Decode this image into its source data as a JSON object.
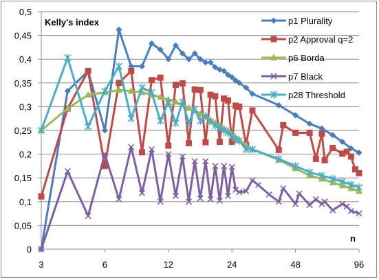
{
  "chart_data": {
    "type": "line",
    "title": "Kelly's index",
    "xlabel": "n",
    "ylabel": "",
    "x_scale": "log",
    "x_tick_labels": [
      "3",
      "6",
      "12",
      "24",
      "48",
      "96"
    ],
    "y_tick_labels": [
      "0",
      "0,05",
      "0,1",
      "0,15",
      "0,2",
      "0,25",
      "0,3",
      "0,35",
      "0,4",
      "0,45",
      "0,5"
    ],
    "xlim": [
      3,
      96
    ],
    "ylim": [
      0,
      0.5
    ],
    "grid": "horizontal",
    "legend_position": "top-right",
    "series": [
      {
        "name": "p1 Plurality",
        "color": "#4a7ebb",
        "marker": "diamond",
        "x": [
          3,
          4,
          5,
          6,
          7,
          8,
          9,
          10,
          11,
          12,
          13,
          14,
          15,
          16,
          17,
          18,
          19,
          20,
          21,
          22,
          23,
          24,
          25,
          26,
          28,
          30,
          40,
          48,
          56,
          64,
          72,
          80,
          88,
          96
        ],
        "y": [
          0,
          0.333,
          0.375,
          0.25,
          0.462,
          0.385,
          0.385,
          0.433,
          0.42,
          0.4,
          0.429,
          0.412,
          0.4,
          0.412,
          0.4,
          0.393,
          0.393,
          0.383,
          0.378,
          0.375,
          0.367,
          0.362,
          0.355,
          0.35,
          0.34,
          0.327,
          0.303,
          0.282,
          0.264,
          0.254,
          0.24,
          0.226,
          0.212,
          0.203
        ]
      },
      {
        "name": "p2 Approval q=2",
        "color": "#be4b48",
        "marker": "square",
        "x": [
          3,
          4,
          5,
          6,
          7,
          8,
          9,
          10,
          11,
          12,
          13,
          14,
          15,
          16,
          17,
          18,
          19,
          20,
          21,
          22,
          23,
          24,
          25,
          26,
          28,
          30,
          40,
          42,
          48,
          56,
          60,
          64,
          66,
          72,
          80,
          84,
          88,
          92,
          96
        ],
        "y": [
          0.111,
          0.296,
          0.375,
          0.175,
          0.35,
          0.375,
          0.204,
          0.356,
          0.361,
          0.218,
          0.346,
          0.349,
          0.223,
          0.336,
          0.335,
          0.225,
          0.325,
          0.322,
          0.226,
          0.317,
          0.313,
          0.226,
          0.302,
          0.3,
          0.22,
          0.292,
          0.209,
          0.261,
          0.245,
          0.245,
          0.19,
          0.243,
          0.187,
          0.213,
          0.201,
          0.205,
          0.195,
          0.168,
          0.16
        ]
      },
      {
        "name": "p6 Borda",
        "color": "#98b954",
        "marker": "triangle",
        "x": [
          3,
          4,
          5,
          6,
          7,
          8,
          9,
          10,
          11,
          12,
          13,
          14,
          15,
          16,
          17,
          18,
          19,
          20,
          21,
          22,
          23,
          24,
          25,
          26,
          28,
          30,
          40,
          48,
          56,
          64,
          72,
          80,
          88,
          96
        ],
        "y": [
          0.25,
          0.296,
          0.325,
          0.33,
          0.335,
          0.333,
          0.33,
          0.325,
          0.32,
          0.315,
          0.31,
          0.305,
          0.297,
          0.292,
          0.285,
          0.28,
          0.272,
          0.266,
          0.26,
          0.254,
          0.249,
          0.243,
          0.235,
          0.23,
          0.22,
          0.21,
          0.188,
          0.17,
          0.155,
          0.148,
          0.14,
          0.134,
          0.128,
          0.122
        ]
      },
      {
        "name": "p7 Black",
        "color": "#7d60a0",
        "marker": "x",
        "x": [
          3,
          4,
          5,
          6,
          7,
          8,
          9,
          10,
          11,
          12,
          13,
          14,
          15,
          16,
          17,
          18,
          19,
          20,
          21,
          22,
          23,
          24,
          25,
          26,
          28,
          30,
          32,
          36,
          40,
          42,
          48,
          50,
          56,
          60,
          64,
          66,
          72,
          80,
          84,
          88,
          96
        ],
        "y": [
          0,
          0.164,
          0.07,
          0.2,
          0.105,
          0.215,
          0.118,
          0.21,
          0.1,
          0.2,
          0.112,
          0.195,
          0.1,
          0.185,
          0.107,
          0.185,
          0.105,
          0.175,
          0.102,
          0.175,
          0.112,
          0.173,
          0.125,
          0.12,
          0.122,
          0.145,
          0.135,
          0.115,
          0.1,
          0.128,
          0.095,
          0.117,
          0.093,
          0.105,
          0.095,
          0.1,
          0.082,
          0.095,
          0.09,
          0.08,
          0.075
        ]
      },
      {
        "name": "p28 Threshold",
        "color": "#4bacc6",
        "marker": "star",
        "x": [
          3,
          4,
          5,
          6,
          7,
          8,
          9,
          10,
          11,
          12,
          13,
          14,
          15,
          16,
          17,
          18,
          19,
          20,
          21,
          22,
          23,
          24,
          25,
          26,
          28,
          30,
          40,
          48,
          56,
          64,
          72,
          80,
          88,
          96
        ],
        "y": [
          0.25,
          0.403,
          0.258,
          0.333,
          0.385,
          0.275,
          0.34,
          0.33,
          0.27,
          0.31,
          0.265,
          0.31,
          0.265,
          0.295,
          0.27,
          0.28,
          0.268,
          0.26,
          0.255,
          0.25,
          0.245,
          0.238,
          0.232,
          0.228,
          0.21,
          0.21,
          0.19,
          0.175,
          0.162,
          0.155,
          0.148,
          0.142,
          0.136,
          0.13
        ]
      }
    ]
  }
}
